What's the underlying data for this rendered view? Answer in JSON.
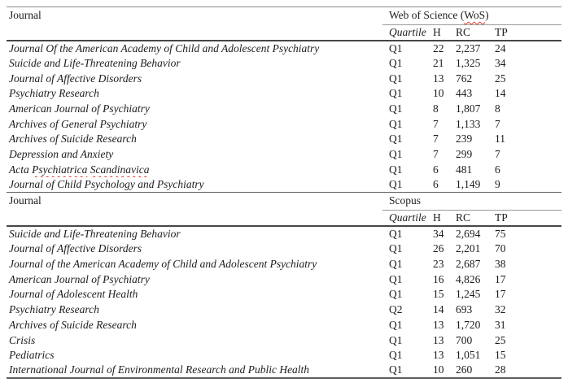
{
  "page": {
    "background": "#ffffff",
    "text_color": "#1c1c1c"
  },
  "colors": {
    "rule_light": "#8a8a8a",
    "rule_dark": "#474747",
    "rule_section": "#5f5f5f",
    "spellcheck_squiggle": "#d83a2d"
  },
  "spellcheck_words": [
    "WoS",
    "Psychiatrica",
    "Scandinavica"
  ],
  "sections": [
    {
      "row_label_header": "Journal",
      "database_header": "Web of Science (WoS)",
      "columns": {
        "quartile": "Quartile",
        "h": "H",
        "rc": "RC",
        "tp": "TP"
      },
      "rows": [
        {
          "journal": "Journal Of the American Academy of Child and Adolescent Psychiatry",
          "quartile": "Q1",
          "h": "22",
          "rc": "2,237",
          "tp": "24"
        },
        {
          "journal": "Suicide and Life-Threatening Behavior",
          "quartile": "Q1",
          "h": "21",
          "rc": "1,325",
          "tp": "34"
        },
        {
          "journal": "Journal of Affective Disorders",
          "quartile": "Q1",
          "h": "13",
          "rc": "762",
          "tp": "25"
        },
        {
          "journal": "Psychiatry Research",
          "quartile": "Q1",
          "h": "10",
          "rc": "443",
          "tp": "14"
        },
        {
          "journal": "American Journal of Psychiatry",
          "quartile": "Q1",
          "h": "8",
          "rc": "1,807",
          "tp": "8"
        },
        {
          "journal": "Archives of General Psychiatry",
          "quartile": "Q1",
          "h": "7",
          "rc": "1,133",
          "tp": "7"
        },
        {
          "journal": "Archives of Suicide Research",
          "quartile": "Q1",
          "h": "7",
          "rc": "239",
          "tp": "11"
        },
        {
          "journal": "Depression and Anxiety",
          "quartile": "Q1",
          "h": "7",
          "rc": "299",
          "tp": "7"
        },
        {
          "journal": "Acta Psychiatrica Scandinavica",
          "quartile": "Q1",
          "h": "6",
          "rc": "481",
          "tp": "6"
        },
        {
          "journal": "Journal of Child Psychology and Psychiatry",
          "quartile": "Q1",
          "h": "6",
          "rc": "1,149",
          "tp": "9"
        }
      ]
    },
    {
      "row_label_header": "Journal",
      "database_header": "Scopus",
      "columns": {
        "quartile": "Quartile",
        "h": "H",
        "rc": "RC",
        "tp": "TP"
      },
      "rows": [
        {
          "journal": "Suicide and Life-Threatening Behavior",
          "quartile": "Q1",
          "h": "34",
          "rc": "2,694",
          "tp": "75"
        },
        {
          "journal": "Journal of Affective Disorders",
          "quartile": "Q1",
          "h": "26",
          "rc": "2,201",
          "tp": "70"
        },
        {
          "journal": "Journal of the American Academy of Child and Adolescent Psychiatry",
          "quartile": "Q1",
          "h": "23",
          "rc": "2,687",
          "tp": "38"
        },
        {
          "journal": "American Journal of Psychiatry",
          "quartile": "Q1",
          "h": "16",
          "rc": "4,826",
          "tp": "17"
        },
        {
          "journal": "Journal of Adolescent Health",
          "quartile": "Q1",
          "h": "15",
          "rc": "1,245",
          "tp": "17"
        },
        {
          "journal": "Psychiatry Research",
          "quartile": "Q2",
          "h": "14",
          "rc": "693",
          "tp": "32"
        },
        {
          "journal": "Archives of Suicide Research",
          "quartile": "Q1",
          "h": "13",
          "rc": "1,720",
          "tp": "31"
        },
        {
          "journal": "Crisis",
          "quartile": "Q1",
          "h": "13",
          "rc": "700",
          "tp": "25"
        },
        {
          "journal": "Pediatrics",
          "quartile": "Q1",
          "h": "13",
          "rc": "1,051",
          "tp": "15"
        },
        {
          "journal": "International Journal of Environmental Research and Public Health",
          "quartile": "Q1",
          "h": "10",
          "rc": "260",
          "tp": "28"
        }
      ]
    }
  ]
}
